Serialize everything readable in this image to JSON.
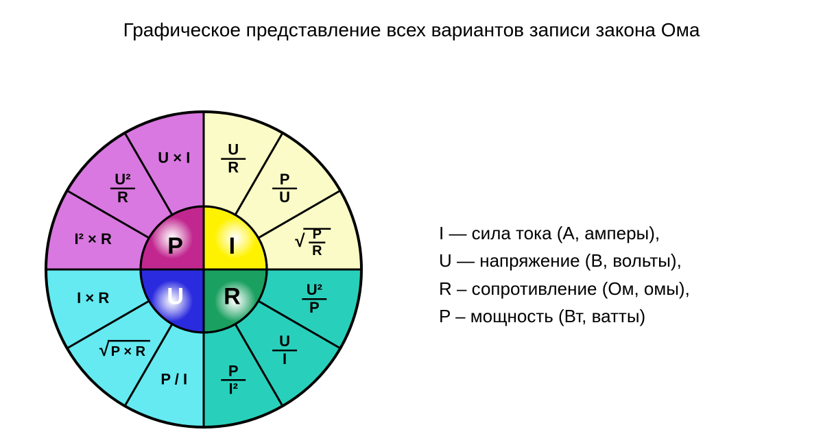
{
  "title": "Графическое представление всех вариантов записи закона Ома",
  "legend": {
    "I": "I — сила тока (А, амперы),",
    "U": "U — напряжение (В, вольты),",
    "R": "R – сопротивление (Ом, омы),",
    "P": "P – мощность (Вт, ватты)"
  },
  "wheel": {
    "outer_r": 230,
    "inner_r": 92,
    "border_color": "#000000",
    "border_width": 3,
    "quadrants": {
      "P": {
        "fill": "#d978e0",
        "center_fill": "#c1278f",
        "label": "P"
      },
      "I": {
        "fill": "#fbfbc7",
        "center_fill": "#fff200",
        "label": "I"
      },
      "R": {
        "fill": "#28d0bb",
        "center_fill": "#1aa060",
        "label": "R"
      },
      "U": {
        "fill": "#64eaf0",
        "center_fill": "#2a2adf",
        "label": "U"
      }
    },
    "segments": [
      {
        "q": "I",
        "angle_mid": -75,
        "type": "frac",
        "top": "U",
        "bot": "R"
      },
      {
        "q": "I",
        "angle_mid": -45,
        "type": "frac",
        "top": "P",
        "bot": "U"
      },
      {
        "q": "I",
        "angle_mid": -15,
        "type": "sqrt_frac",
        "top": "P",
        "bot": "R"
      },
      {
        "q": "R",
        "angle_mid": 15,
        "type": "frac",
        "top": "U²",
        "bot": "P"
      },
      {
        "q": "R",
        "angle_mid": 45,
        "type": "frac",
        "top": "U",
        "bot": "I"
      },
      {
        "q": "R",
        "angle_mid": 75,
        "type": "frac",
        "top": "P",
        "bot": "I²"
      },
      {
        "q": "U",
        "angle_mid": 105,
        "type": "plain",
        "text": "P / I"
      },
      {
        "q": "U",
        "angle_mid": 135,
        "type": "sqrt",
        "text": "P × R"
      },
      {
        "q": "U",
        "angle_mid": 165,
        "type": "plain",
        "text": "I × R"
      },
      {
        "q": "P",
        "angle_mid": 195,
        "type": "plain",
        "text": "I² × R"
      },
      {
        "q": "P",
        "angle_mid": 225,
        "type": "frac",
        "top": "U²",
        "bot": "R"
      },
      {
        "q": "P",
        "angle_mid": 255,
        "type": "plain",
        "text": "U × I"
      }
    ],
    "text_color": "#000000",
    "formula_fontsize": 22,
    "center_label_fontsize": 34
  }
}
